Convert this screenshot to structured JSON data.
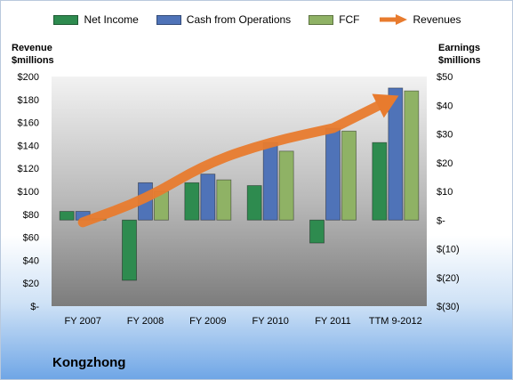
{
  "chart_data": {
    "type": "bar",
    "categories": [
      "FY 2007",
      "FY 2008",
      "FY 2009",
      "FY 2010",
      "FY 2011",
      "TTM 9-2012"
    ],
    "series": [
      {
        "name": "Net Income",
        "axis": "right",
        "color": "#2e8b4f",
        "values": [
          3,
          -21,
          13,
          12,
          -8,
          27
        ]
      },
      {
        "name": "Cash from Operations",
        "axis": "right",
        "color": "#4f73b8",
        "values": [
          3,
          13,
          16,
          27,
          32,
          46
        ]
      },
      {
        "name": "FCF",
        "axis": "right",
        "color": "#8fb265",
        "values": [
          0.5,
          10,
          14,
          24,
          31,
          45
        ]
      },
      {
        "name": "Revenues",
        "axis": "left",
        "type": "line",
        "color": "#e87b2e",
        "values": [
          73,
          93,
          125,
          143,
          155,
          182
        ]
      }
    ],
    "left_axis": {
      "title_lines": [
        "Revenue",
        "$millions"
      ],
      "range": [
        0,
        200
      ],
      "step": 20,
      "tick_labels": [
        "$-",
        "$20",
        "$40",
        "$60",
        "$80",
        "$100",
        "$120",
        "$140",
        "$160",
        "$180",
        "$200"
      ]
    },
    "right_axis": {
      "title_lines": [
        "Earnings",
        "$millions"
      ],
      "range": [
        -30,
        50
      ],
      "step": 10,
      "tick_labels": [
        "$(30)",
        "$(20)",
        "$(10)",
        "$-",
        "$10",
        "$20",
        "$30",
        "$40",
        "$50"
      ]
    },
    "legend_position": "top",
    "grid": false
  },
  "company": "Kongzhong"
}
